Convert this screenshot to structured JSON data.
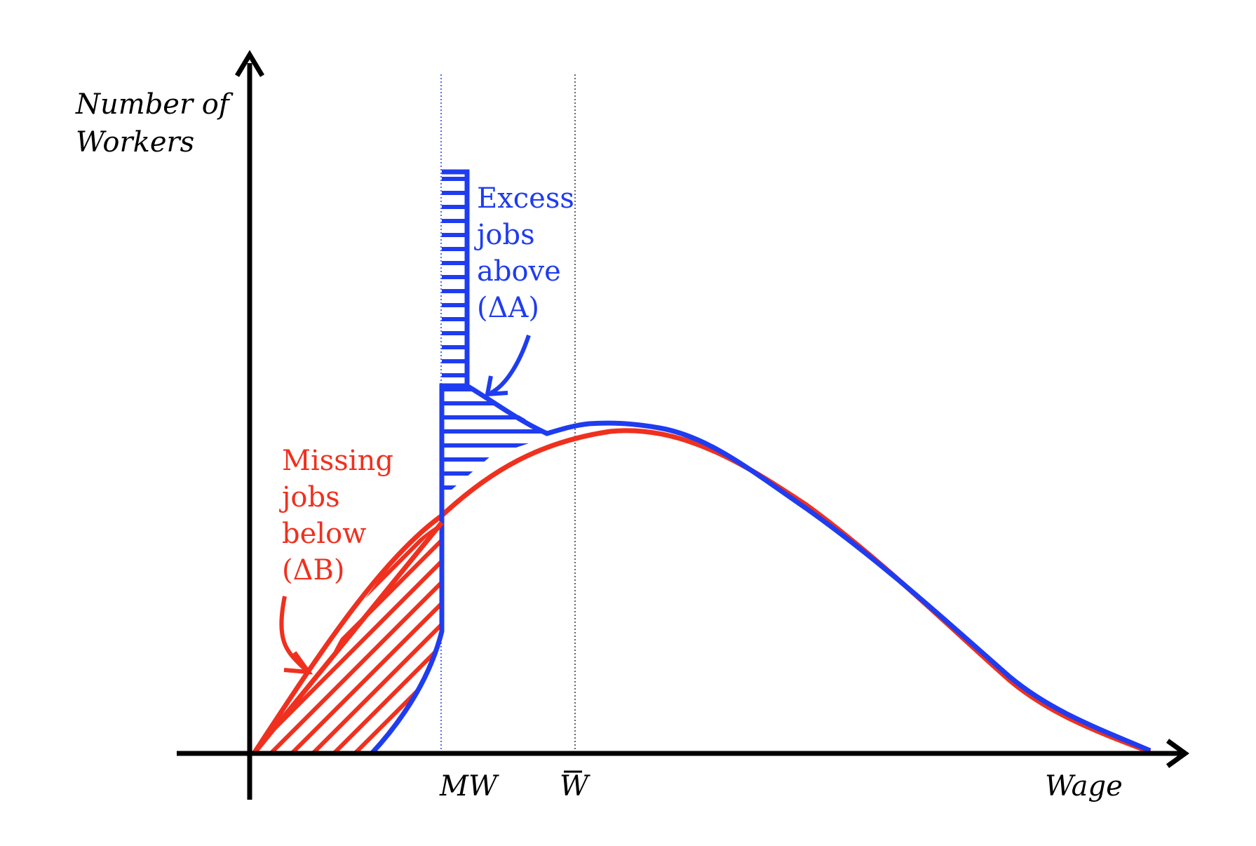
{
  "axes": {
    "y_label_lines": [
      "Number of",
      "Workers"
    ],
    "x_label": "Wage",
    "tick_mw": "MW",
    "tick_wbar": "W"
  },
  "annotations": {
    "excess": {
      "lines": [
        "Excess",
        "jobs",
        "above",
        "(ΔA)"
      ],
      "color": "#1f3cf0"
    },
    "missing": {
      "lines": [
        "Missing",
        "jobs",
        "below",
        "(ΔB)"
      ],
      "color": "#f0301e"
    }
  },
  "colors": {
    "axis": "#000000",
    "after_distribution": "#1f3cf0",
    "before_distribution": "#f0301e",
    "mw_guide": "#1f3cf0",
    "wbar_guide": "#333333"
  }
}
